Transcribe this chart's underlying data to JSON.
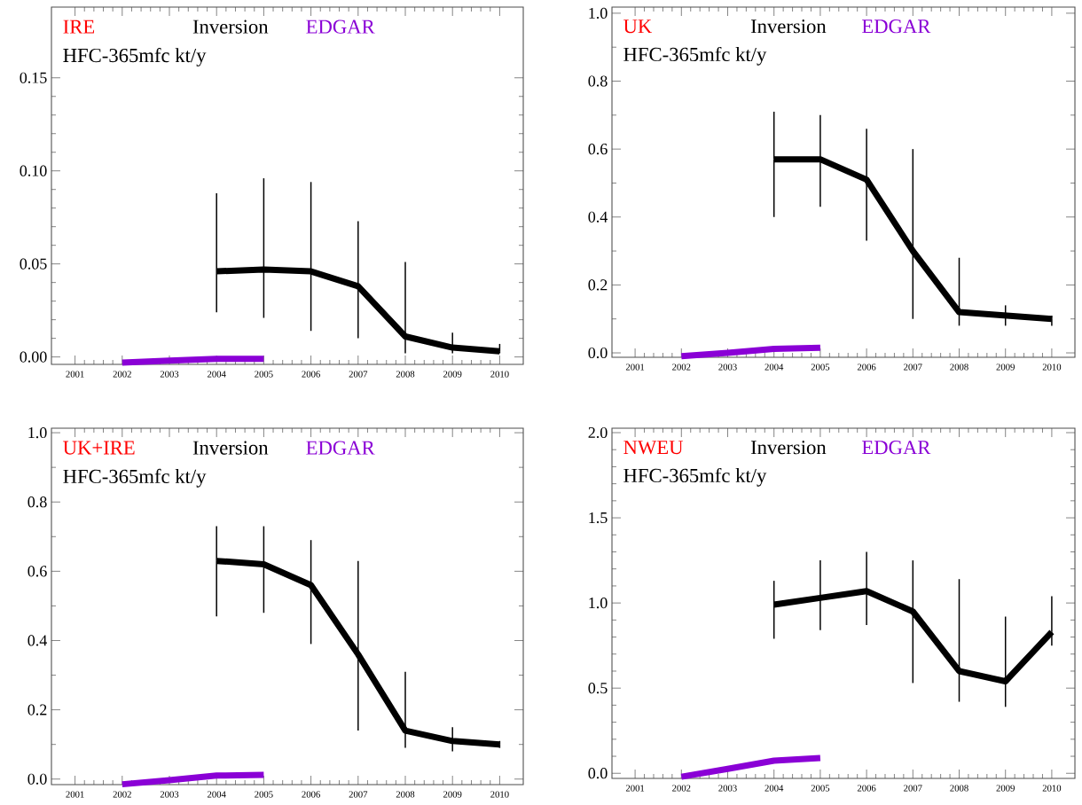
{
  "chart_data": [
    {
      "type": "line",
      "title": "IRE",
      "subtitle": "HFC-365mfc kt/y",
      "legend": "top",
      "xlim": [
        2000.5,
        2010.5
      ],
      "xticks": [
        2001,
        2002,
        2003,
        2004,
        2005,
        2006,
        2007,
        2008,
        2009,
        2010
      ],
      "ylim": [
        -0.004,
        0.188
      ],
      "yticks": [
        {
          "value": 0,
          "label": "0.00"
        },
        {
          "value": 0.05,
          "label": "0.05"
        },
        {
          "value": 0.1,
          "label": "0.10"
        },
        {
          "value": 0.15,
          "label": "0.15"
        }
      ],
      "series": [
        {
          "name": "Inversion",
          "color": "#000000",
          "x": [
            2004,
            2005,
            2006,
            2007,
            2008,
            2009,
            2010
          ],
          "values": [
            0.046,
            0.047,
            0.046,
            0.038,
            0.011,
            0.005,
            0.003
          ],
          "errors": [
            [
              0.024,
              0.088
            ],
            [
              0.021,
              0.096
            ],
            [
              0.014,
              0.094
            ],
            [
              0.01,
              0.073
            ],
            [
              0.002,
              0.051
            ],
            [
              0.002,
              0.013
            ],
            [
              0.002,
              0.007
            ]
          ]
        },
        {
          "name": "EDGAR",
          "color": "#8a00d6",
          "x": [
            2002,
            2003,
            2004,
            2005
          ],
          "values": [
            -0.003,
            -0.002,
            -0.001,
            -0.001
          ]
        }
      ]
    },
    {
      "type": "line",
      "title": "UK",
      "subtitle": "HFC-365mfc kt/y",
      "legend": "top",
      "xlim": [
        2000.5,
        2010.5
      ],
      "xticks": [
        2001,
        2002,
        2003,
        2004,
        2005,
        2006,
        2007,
        2008,
        2009,
        2010
      ],
      "ylim": [
        -0.013,
        1.018
      ],
      "yticks": [
        {
          "value": 0,
          "label": "0.0"
        },
        {
          "value": 0.2,
          "label": "0.2"
        },
        {
          "value": 0.4,
          "label": "0.4"
        },
        {
          "value": 0.6,
          "label": "0.6"
        },
        {
          "value": 0.8,
          "label": "0.8"
        },
        {
          "value": 1,
          "label": "1.0"
        }
      ],
      "series": [
        {
          "name": "Inversion",
          "color": "#000000",
          "x": [
            2004,
            2005,
            2006,
            2007,
            2008,
            2009,
            2010
          ],
          "values": [
            0.57,
            0.57,
            0.51,
            0.3,
            0.12,
            0.11,
            0.1
          ],
          "errors": [
            [
              0.4,
              0.71
            ],
            [
              0.43,
              0.7
            ],
            [
              0.33,
              0.66
            ],
            [
              0.1,
              0.6
            ],
            [
              0.08,
              0.28
            ],
            [
              0.08,
              0.14
            ],
            [
              0.08,
              0.11
            ]
          ]
        },
        {
          "name": "EDGAR",
          "color": "#8a00d6",
          "x": [
            2002,
            2003,
            2004,
            2005
          ],
          "values": [
            -0.01,
            0.0,
            0.012,
            0.015
          ]
        }
      ]
    },
    {
      "type": "line",
      "title": "UK+IRE",
      "subtitle": "HFC-365mfc kt/y",
      "legend": "top",
      "xlim": [
        2000.5,
        2010.5
      ],
      "xticks": [
        2001,
        2002,
        2003,
        2004,
        2005,
        2006,
        2007,
        2008,
        2009,
        2010
      ],
      "ylim": [
        -0.016,
        1.013
      ],
      "yticks": [
        {
          "value": 0,
          "label": "0.0"
        },
        {
          "value": 0.2,
          "label": "0.2"
        },
        {
          "value": 0.4,
          "label": "0.4"
        },
        {
          "value": 0.6,
          "label": "0.6"
        },
        {
          "value": 0.8,
          "label": "0.8"
        },
        {
          "value": 1,
          "label": "1.0"
        }
      ],
      "series": [
        {
          "name": "Inversion",
          "color": "#000000",
          "x": [
            2004,
            2005,
            2006,
            2007,
            2008,
            2009,
            2010
          ],
          "values": [
            0.63,
            0.62,
            0.56,
            0.36,
            0.14,
            0.11,
            0.1
          ],
          "errors": [
            [
              0.47,
              0.73
            ],
            [
              0.48,
              0.73
            ],
            [
              0.39,
              0.69
            ],
            [
              0.14,
              0.63
            ],
            [
              0.09,
              0.31
            ],
            [
              0.08,
              0.15
            ],
            [
              0.09,
              0.11
            ]
          ]
        },
        {
          "name": "EDGAR",
          "color": "#8a00d6",
          "x": [
            2002,
            2003,
            2004,
            2005
          ],
          "values": [
            -0.015,
            -0.003,
            0.01,
            0.012
          ]
        }
      ]
    },
    {
      "type": "line",
      "title": "NWEU",
      "subtitle": "HFC-365mfc kt/y",
      "legend": "top",
      "xlim": [
        2000.5,
        2010.5
      ],
      "xticks": [
        2001,
        2002,
        2003,
        2004,
        2005,
        2006,
        2007,
        2008,
        2009,
        2010
      ],
      "ylim": [
        -0.03,
        2.026
      ],
      "yticks": [
        {
          "value": 0,
          "label": "0.0"
        },
        {
          "value": 0.5,
          "label": "0.5"
        },
        {
          "value": 1,
          "label": "1.0"
        },
        {
          "value": 1.5,
          "label": "1.5"
        },
        {
          "value": 2,
          "label": "2.0"
        }
      ],
      "series": [
        {
          "name": "Inversion",
          "color": "#000000",
          "x": [
            2004,
            2005,
            2006,
            2007,
            2008,
            2009,
            2010
          ],
          "values": [
            0.99,
            1.03,
            1.07,
            0.95,
            0.6,
            0.54,
            0.83
          ],
          "errors": [
            [
              0.79,
              1.13
            ],
            [
              0.84,
              1.25
            ],
            [
              0.87,
              1.3
            ],
            [
              0.53,
              1.25
            ],
            [
              0.42,
              1.14
            ],
            [
              0.39,
              0.92
            ],
            [
              0.75,
              1.04
            ]
          ]
        },
        {
          "name": "EDGAR",
          "color": "#8a00d6",
          "x": [
            2002,
            2003,
            2004,
            2005
          ],
          "values": [
            -0.02,
            0.026,
            0.074,
            0.09
          ]
        }
      ]
    }
  ]
}
